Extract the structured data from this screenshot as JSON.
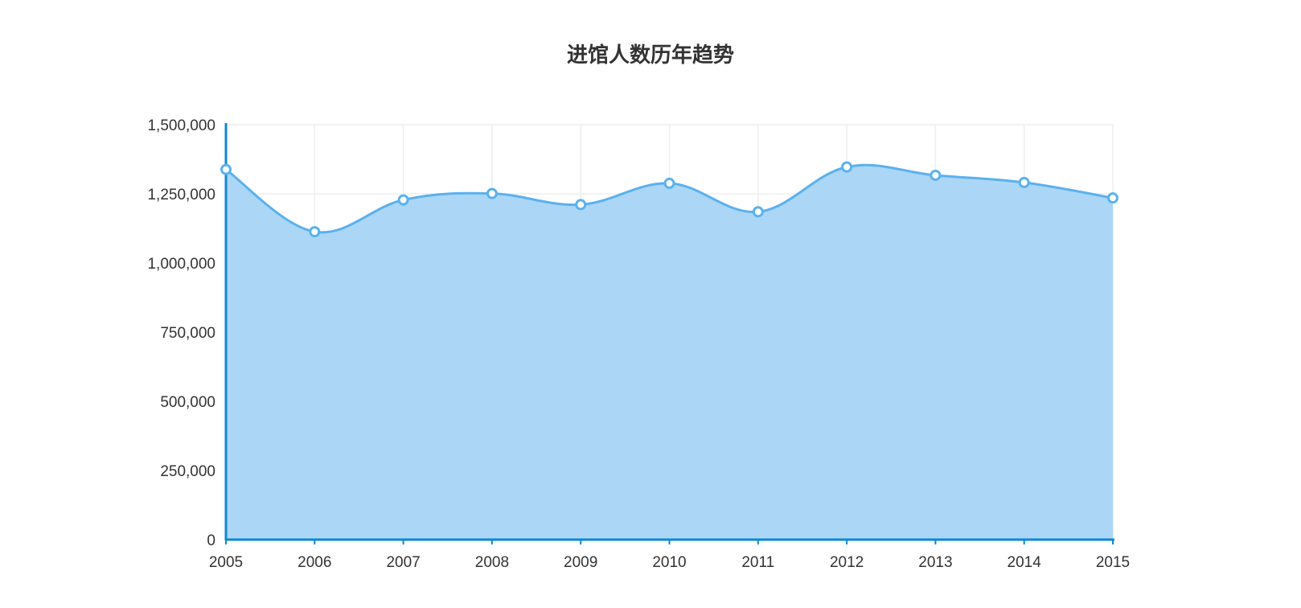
{
  "chart_data": {
    "type": "area",
    "title": "进馆人数历年趋势",
    "categories": [
      "2005",
      "2006",
      "2007",
      "2008",
      "2009",
      "2010",
      "2011",
      "2012",
      "2013",
      "2014",
      "2015"
    ],
    "values": [
      1338000,
      1113000,
      1228000,
      1251000,
      1211000,
      1288000,
      1185000,
      1347000,
      1317000,
      1291000,
      1235000
    ],
    "ylim": [
      0,
      1500000
    ],
    "yticks": [
      "0",
      "250,000",
      "500,000",
      "750,000",
      "1,000,000",
      "1,250,000",
      "1,500,000"
    ],
    "xlabel": "",
    "ylabel": "",
    "grid": true,
    "smooth": true,
    "colors": {
      "line": "#5ab1ef",
      "fill": "#a8d4f5",
      "axis": "#0e88d6",
      "grid": "#eeeeee"
    }
  }
}
